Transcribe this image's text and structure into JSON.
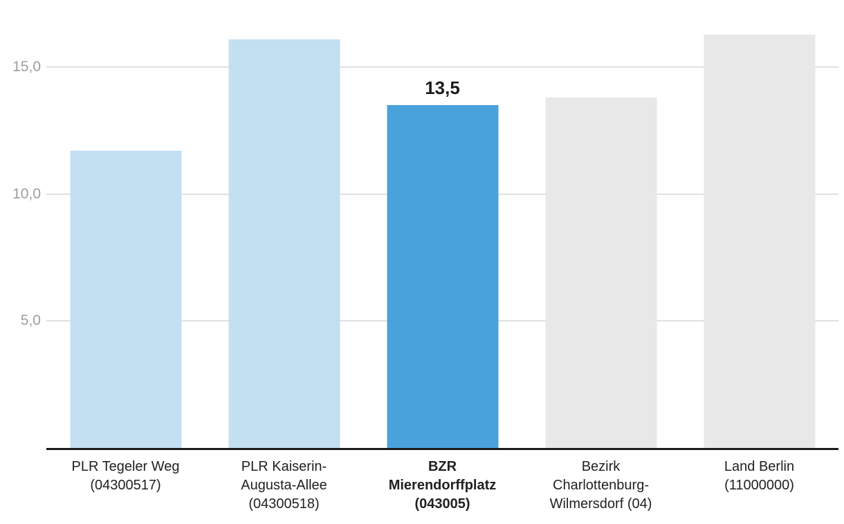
{
  "chart_data": {
    "type": "bar",
    "title": "",
    "xlabel": "",
    "ylabel": "",
    "categories": [
      "PLR Tegeler Weg\n(04300517)",
      "PLR Kaiserin-\nAugusta-Allee\n(04300518)",
      "BZR\nMierendorffplatz\n(043005)",
      "Bezirk\nCharlottenburg-\nWilmersdorf (04)",
      "Land Berlin\n(11000000)"
    ],
    "values": [
      11.7,
      16.1,
      13.5,
      13.8,
      16.3
    ],
    "value_labels": [
      "",
      "",
      "13,5",
      "",
      ""
    ],
    "highlighted_index": 2,
    "bar_colors": [
      "#c3dff2",
      "#c3dff2",
      "#4aa2dc",
      "#e8e8e8",
      "#e8e8e8"
    ],
    "yticks": [
      {
        "value": 5,
        "label": "5,0"
      },
      {
        "value": 10,
        "label": "10,0"
      },
      {
        "value": 15,
        "label": "15,0"
      }
    ],
    "ylim": [
      0,
      17.65
    ],
    "grid": true,
    "legend_position": "none",
    "colors": {
      "highlight_bar": "#4aa2dc",
      "comparison_bar_blue": "#c3dff2",
      "comparison_bar_gray": "#e8e8e8",
      "gridline": "#e0e0e0",
      "axis_line": "#1a1a1a",
      "y_tick_text": "#9e9e9e",
      "x_tick_text": "#212121",
      "value_label_text": "#1a1a1a",
      "background": "#ffffff"
    }
  }
}
